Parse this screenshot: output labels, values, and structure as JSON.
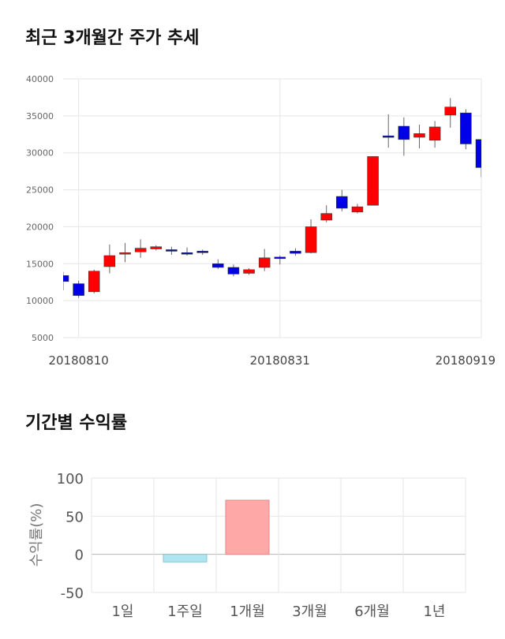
{
  "titles": {
    "price_trend": "최근 3개월간 주가 추세",
    "period_returns": "기간별 수익률"
  },
  "colors": {
    "up": "#ff0000",
    "down": "#0000e6",
    "grid": "#e6e6e6",
    "positive_bar": "#ffa8a8",
    "negative_bar": "#b0e4f0"
  },
  "chart_data": [
    {
      "type": "candlestick",
      "ylim": [
        5000,
        40000
      ],
      "yticks": [
        "40000",
        "35000",
        "30000",
        "25000",
        "20000",
        "15000",
        "10000",
        "5000"
      ],
      "ytick_values": [
        40000,
        35000,
        30000,
        25000,
        20000,
        15000,
        10000,
        5000
      ],
      "xtick_labels": [
        {
          "index": 1,
          "label": "20180810"
        },
        {
          "index": 14,
          "label": "20180831"
        },
        {
          "index": 27,
          "label": "20180919"
        }
      ],
      "candles": [
        {
          "o": 13400,
          "c": 12600,
          "h": 13900,
          "l": 11400
        },
        {
          "o": 12300,
          "c": 10700,
          "h": 12700,
          "l": 10400
        },
        {
          "o": 11200,
          "c": 14000,
          "h": 14200,
          "l": 11000
        },
        {
          "o": 14600,
          "c": 16100,
          "h": 17600,
          "l": 13700
        },
        {
          "o": 16400,
          "c": 16500,
          "h": 17800,
          "l": 15200
        },
        {
          "o": 16600,
          "c": 17100,
          "h": 18300,
          "l": 15800
        },
        {
          "o": 17000,
          "c": 17300,
          "h": 17500,
          "l": 16800
        },
        {
          "o": 16900,
          "c": 16700,
          "h": 17300,
          "l": 16200
        },
        {
          "o": 16500,
          "c": 16400,
          "h": 17200,
          "l": 16100
        },
        {
          "o": 16700,
          "c": 16500,
          "h": 16900,
          "l": 16200
        },
        {
          "o": 15000,
          "c": 14500,
          "h": 15600,
          "l": 14300
        },
        {
          "o": 14500,
          "c": 13600,
          "h": 14900,
          "l": 13300
        },
        {
          "o": 13700,
          "c": 14200,
          "h": 14400,
          "l": 13500
        },
        {
          "o": 14500,
          "c": 15800,
          "h": 17000,
          "l": 14000
        },
        {
          "o": 15900,
          "c": 15800,
          "h": 16100,
          "l": 14900
        },
        {
          "o": 16700,
          "c": 16400,
          "h": 17100,
          "l": 16100
        },
        {
          "o": 16500,
          "c": 20000,
          "h": 21000,
          "l": 16400
        },
        {
          "o": 20900,
          "c": 21800,
          "h": 22900,
          "l": 20600
        },
        {
          "o": 24100,
          "c": 22500,
          "h": 25000,
          "l": 22100
        },
        {
          "o": 22000,
          "c": 22700,
          "h": 23100,
          "l": 21800
        },
        {
          "o": 22900,
          "c": 29500,
          "h": 29500,
          "l": 22900
        },
        {
          "o": 32300,
          "c": 32200,
          "h": 35200,
          "l": 30700
        },
        {
          "o": 33600,
          "c": 31800,
          "h": 34800,
          "l": 29600
        },
        {
          "o": 32100,
          "c": 32600,
          "h": 33800,
          "l": 30600
        },
        {
          "o": 31700,
          "c": 33500,
          "h": 34300,
          "l": 30700
        },
        {
          "o": 35100,
          "c": 36200,
          "h": 37400,
          "l": 33400
        },
        {
          "o": 35400,
          "c": 31200,
          "h": 35900,
          "l": 30500
        },
        {
          "o": 31800,
          "c": 28000,
          "h": 31800,
          "l": 26700
        }
      ]
    },
    {
      "type": "bar",
      "ylabel": "수익률(%)",
      "ylim": [
        -50,
        100
      ],
      "yticks": [
        "100",
        "50",
        "0",
        "-50"
      ],
      "ytick_values": [
        100,
        50,
        0,
        -50
      ],
      "categories": [
        "1일",
        "1주일",
        "1개월",
        "3개월",
        "6개월",
        "1년"
      ],
      "values": [
        0,
        -10,
        71,
        0,
        0,
        0
      ]
    }
  ]
}
